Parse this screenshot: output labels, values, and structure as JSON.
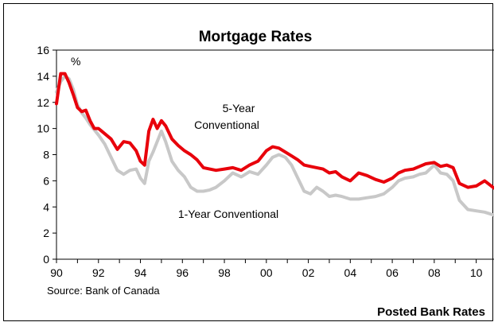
{
  "chart_data": {
    "type": "line",
    "title": "Mortgage Rates",
    "ylabel_unit": "%",
    "xlim": [
      1990,
      2011
    ],
    "ylim": [
      0,
      16
    ],
    "y_ticks": [
      0,
      2,
      4,
      6,
      8,
      10,
      12,
      14,
      16
    ],
    "x_tick_labels": [
      {
        "year": 1990,
        "label": "90"
      },
      {
        "year": 1992,
        "label": "92"
      },
      {
        "year": 1994,
        "label": "94"
      },
      {
        "year": 1996,
        "label": "96"
      },
      {
        "year": 1998,
        "label": "98"
      },
      {
        "year": 2000,
        "label": "00"
      },
      {
        "year": 2002,
        "label": "02"
      },
      {
        "year": 2004,
        "label": "04"
      },
      {
        "year": 2006,
        "label": "06"
      },
      {
        "year": 2008,
        "label": "08"
      },
      {
        "year": 2010,
        "label": "10"
      }
    ],
    "grid": false,
    "legend": "none",
    "source": "Source: Bank of Canada",
    "footer": "Posted Bank Rates",
    "series": [
      {
        "name": "1-Year Conventional",
        "label_line1": "1-Year Conventional",
        "color": "#c8c8c8",
        "x": [
          1990.0,
          1990.2,
          1990.4,
          1990.6,
          1990.8,
          1991.0,
          1991.2,
          1991.4,
          1991.6,
          1991.8,
          1992.0,
          1992.3,
          1992.6,
          1992.9,
          1993.2,
          1993.5,
          1993.8,
          1994.0,
          1994.2,
          1994.4,
          1994.6,
          1994.8,
          1995.0,
          1995.2,
          1995.5,
          1995.8,
          1996.1,
          1996.4,
          1996.7,
          1997.0,
          1997.3,
          1997.6,
          1998.0,
          1998.4,
          1998.8,
          1999.2,
          1999.6,
          2000.0,
          2000.3,
          2000.6,
          2000.9,
          2001.2,
          2001.5,
          2001.8,
          2002.1,
          2002.4,
          2002.7,
          2003.0,
          2003.3,
          2003.6,
          2004.0,
          2004.4,
          2004.8,
          2005.2,
          2005.6,
          2006.0,
          2006.3,
          2006.6,
          2007.0,
          2007.3,
          2007.6,
          2008.0,
          2008.3,
          2008.6,
          2008.9,
          2009.2,
          2009.6,
          2010.0,
          2010.4,
          2010.8,
          2010.9
        ],
        "values": [
          12.8,
          13.6,
          14.0,
          13.8,
          13.0,
          11.8,
          11.2,
          10.8,
          10.3,
          9.9,
          9.5,
          8.8,
          7.8,
          6.8,
          6.5,
          6.8,
          6.9,
          6.2,
          5.8,
          7.5,
          8.2,
          9.0,
          9.8,
          9.0,
          7.5,
          6.8,
          6.3,
          5.5,
          5.2,
          5.2,
          5.3,
          5.5,
          6.0,
          6.6,
          6.3,
          6.7,
          6.5,
          7.2,
          7.8,
          8.0,
          7.8,
          7.2,
          6.2,
          5.2,
          5.0,
          5.5,
          5.2,
          4.8,
          4.9,
          4.8,
          4.6,
          4.6,
          4.7,
          4.8,
          5.0,
          5.5,
          6.0,
          6.2,
          6.3,
          6.5,
          6.6,
          7.2,
          6.6,
          6.5,
          6.0,
          4.5,
          3.8,
          3.7,
          3.6,
          3.4,
          3.3
        ]
      },
      {
        "name": "5-Year Conventional",
        "label_line1": "5-Year",
        "label_line2": "Conventional",
        "color": "#e8000b",
        "x": [
          1990.0,
          1990.2,
          1990.4,
          1990.6,
          1990.8,
          1991.0,
          1991.2,
          1991.4,
          1991.6,
          1991.8,
          1992.0,
          1992.3,
          1992.6,
          1992.9,
          1993.2,
          1993.5,
          1993.8,
          1994.0,
          1994.2,
          1994.4,
          1994.6,
          1994.8,
          1995.0,
          1995.2,
          1995.5,
          1995.8,
          1996.1,
          1996.4,
          1996.7,
          1997.0,
          1997.3,
          1997.6,
          1998.0,
          1998.4,
          1998.8,
          1999.2,
          1999.6,
          2000.0,
          2000.3,
          2000.6,
          2000.9,
          2001.2,
          2001.5,
          2001.8,
          2002.1,
          2002.4,
          2002.7,
          2003.0,
          2003.3,
          2003.6,
          2004.0,
          2004.4,
          2004.8,
          2005.2,
          2005.6,
          2006.0,
          2006.3,
          2006.6,
          2007.0,
          2007.3,
          2007.6,
          2008.0,
          2008.3,
          2008.6,
          2008.9,
          2009.2,
          2009.6,
          2010.0,
          2010.4,
          2010.8,
          2010.9
        ],
        "values": [
          11.9,
          14.2,
          14.2,
          13.5,
          12.6,
          11.6,
          11.3,
          11.4,
          10.6,
          10.0,
          10.0,
          9.6,
          9.2,
          8.4,
          9.0,
          8.9,
          8.3,
          7.5,
          7.2,
          9.8,
          10.7,
          10.0,
          10.6,
          10.2,
          9.2,
          8.7,
          8.3,
          8.0,
          7.6,
          7.0,
          6.9,
          6.8,
          6.9,
          7.0,
          6.8,
          7.2,
          7.5,
          8.3,
          8.6,
          8.5,
          8.2,
          7.9,
          7.6,
          7.2,
          7.1,
          7.0,
          6.9,
          6.6,
          6.7,
          6.3,
          6.0,
          6.6,
          6.4,
          6.1,
          5.9,
          6.2,
          6.6,
          6.8,
          6.9,
          7.1,
          7.3,
          7.4,
          7.1,
          7.2,
          7.0,
          5.8,
          5.5,
          5.6,
          6.0,
          5.5,
          5.4
        ]
      }
    ]
  }
}
